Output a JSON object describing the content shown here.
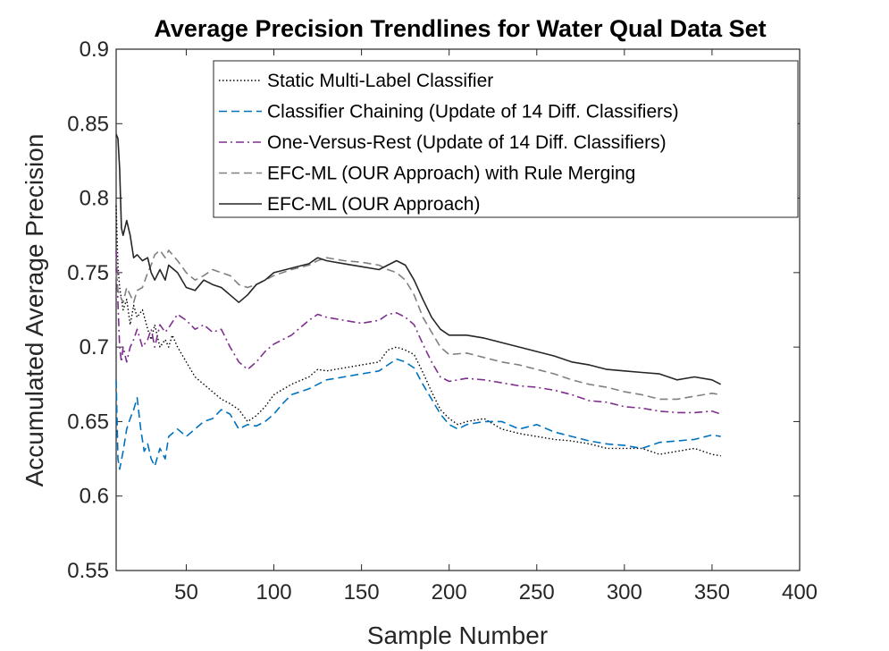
{
  "chart_data": {
    "type": "line",
    "title": "Average Precision Trendlines for Water Qual Data Set",
    "xlabel": "Sample Number",
    "ylabel": "Accumulated Average Precision",
    "xlim": [
      10,
      400
    ],
    "ylim": [
      0.55,
      0.9
    ],
    "xticks": [
      50,
      100,
      150,
      200,
      250,
      300,
      350,
      400
    ],
    "xtick_labels": [
      "50",
      "100",
      "150",
      "200",
      "250",
      "300",
      "350",
      "400"
    ],
    "yticks": [
      0.55,
      0.6,
      0.65,
      0.7,
      0.75,
      0.8,
      0.85,
      0.9
    ],
    "ytick_labels": [
      "0.55",
      "0.6",
      "0.65",
      "0.7",
      "0.75",
      "0.8",
      "0.85",
      "0.9"
    ],
    "grid": false,
    "legend_position": "top-right",
    "series": [
      {
        "name": "Static Multi-Label Classifier",
        "color": "#000000",
        "style": "dotted",
        "points": [
          [
            10,
            0.795
          ],
          [
            11,
            0.755
          ],
          [
            12,
            0.74
          ],
          [
            14,
            0.725
          ],
          [
            16,
            0.732
          ],
          [
            18,
            0.715
          ],
          [
            20,
            0.728
          ],
          [
            22,
            0.72
          ],
          [
            25,
            0.725
          ],
          [
            28,
            0.712
          ],
          [
            30,
            0.705
          ],
          [
            32,
            0.715
          ],
          [
            35,
            0.7
          ],
          [
            38,
            0.705
          ],
          [
            40,
            0.7
          ],
          [
            42,
            0.708
          ],
          [
            45,
            0.7
          ],
          [
            50,
            0.69
          ],
          [
            55,
            0.68
          ],
          [
            60,
            0.675
          ],
          [
            65,
            0.67
          ],
          [
            70,
            0.665
          ],
          [
            75,
            0.662
          ],
          [
            80,
            0.658
          ],
          [
            85,
            0.65
          ],
          [
            90,
            0.654
          ],
          [
            95,
            0.66
          ],
          [
            100,
            0.668
          ],
          [
            110,
            0.675
          ],
          [
            120,
            0.68
          ],
          [
            125,
            0.685
          ],
          [
            130,
            0.684
          ],
          [
            140,
            0.686
          ],
          [
            150,
            0.688
          ],
          [
            160,
            0.69
          ],
          [
            165,
            0.698
          ],
          [
            170,
            0.7
          ],
          [
            175,
            0.698
          ],
          [
            180,
            0.695
          ],
          [
            185,
            0.683
          ],
          [
            190,
            0.67
          ],
          [
            195,
            0.658
          ],
          [
            200,
            0.652
          ],
          [
            205,
            0.648
          ],
          [
            210,
            0.65
          ],
          [
            220,
            0.652
          ],
          [
            230,
            0.645
          ],
          [
            240,
            0.642
          ],
          [
            250,
            0.64
          ],
          [
            260,
            0.638
          ],
          [
            270,
            0.637
          ],
          [
            280,
            0.635
          ],
          [
            290,
            0.632
          ],
          [
            300,
            0.632
          ],
          [
            310,
            0.632
          ],
          [
            320,
            0.628
          ],
          [
            330,
            0.63
          ],
          [
            340,
            0.632
          ],
          [
            350,
            0.628
          ],
          [
            355,
            0.627
          ]
        ]
      },
      {
        "name": "Classifier Chaining (Update of 14 Diff. Classifiers)",
        "color": "#0072BD",
        "style": "dashed",
        "points": [
          [
            10,
            0.678
          ],
          [
            11,
            0.625
          ],
          [
            12,
            0.618
          ],
          [
            14,
            0.63
          ],
          [
            16,
            0.645
          ],
          [
            18,
            0.652
          ],
          [
            20,
            0.658
          ],
          [
            22,
            0.666
          ],
          [
            24,
            0.645
          ],
          [
            26,
            0.63
          ],
          [
            28,
            0.635
          ],
          [
            30,
            0.625
          ],
          [
            32,
            0.62
          ],
          [
            35,
            0.632
          ],
          [
            38,
            0.625
          ],
          [
            40,
            0.64
          ],
          [
            45,
            0.645
          ],
          [
            50,
            0.64
          ],
          [
            55,
            0.645
          ],
          [
            60,
            0.65
          ],
          [
            65,
            0.652
          ],
          [
            70,
            0.658
          ],
          [
            75,
            0.655
          ],
          [
            80,
            0.645
          ],
          [
            85,
            0.648
          ],
          [
            90,
            0.647
          ],
          [
            95,
            0.65
          ],
          [
            100,
            0.655
          ],
          [
            105,
            0.662
          ],
          [
            110,
            0.668
          ],
          [
            120,
            0.672
          ],
          [
            130,
            0.678
          ],
          [
            140,
            0.68
          ],
          [
            150,
            0.682
          ],
          [
            160,
            0.684
          ],
          [
            165,
            0.688
          ],
          [
            170,
            0.692
          ],
          [
            175,
            0.69
          ],
          [
            180,
            0.686
          ],
          [
            185,
            0.675
          ],
          [
            190,
            0.665
          ],
          [
            195,
            0.655
          ],
          [
            200,
            0.648
          ],
          [
            205,
            0.645
          ],
          [
            210,
            0.648
          ],
          [
            220,
            0.65
          ],
          [
            230,
            0.65
          ],
          [
            240,
            0.645
          ],
          [
            250,
            0.648
          ],
          [
            260,
            0.643
          ],
          [
            270,
            0.64
          ],
          [
            280,
            0.637
          ],
          [
            290,
            0.635
          ],
          [
            300,
            0.634
          ],
          [
            310,
            0.632
          ],
          [
            320,
            0.636
          ],
          [
            330,
            0.637
          ],
          [
            340,
            0.638
          ],
          [
            350,
            0.641
          ],
          [
            355,
            0.64
          ]
        ]
      },
      {
        "name": "One-Versus-Rest (Update of 14 Diff. Classifiers)",
        "color": "#7E2F8E",
        "style": "dashdot",
        "points": [
          [
            10,
            0.765
          ],
          [
            11,
            0.73
          ],
          [
            12,
            0.7
          ],
          [
            13,
            0.69
          ],
          [
            14,
            0.7
          ],
          [
            16,
            0.69
          ],
          [
            18,
            0.7
          ],
          [
            20,
            0.705
          ],
          [
            22,
            0.712
          ],
          [
            25,
            0.7
          ],
          [
            28,
            0.705
          ],
          [
            30,
            0.712
          ],
          [
            32,
            0.7
          ],
          [
            35,
            0.715
          ],
          [
            38,
            0.71
          ],
          [
            40,
            0.713
          ],
          [
            45,
            0.722
          ],
          [
            50,
            0.718
          ],
          [
            55,
            0.712
          ],
          [
            60,
            0.715
          ],
          [
            65,
            0.71
          ],
          [
            70,
            0.712
          ],
          [
            75,
            0.7
          ],
          [
            80,
            0.69
          ],
          [
            85,
            0.685
          ],
          [
            90,
            0.69
          ],
          [
            95,
            0.697
          ],
          [
            100,
            0.702
          ],
          [
            110,
            0.708
          ],
          [
            120,
            0.718
          ],
          [
            125,
            0.722
          ],
          [
            130,
            0.72
          ],
          [
            140,
            0.718
          ],
          [
            150,
            0.716
          ],
          [
            160,
            0.718
          ],
          [
            165,
            0.722
          ],
          [
            170,
            0.723
          ],
          [
            175,
            0.72
          ],
          [
            180,
            0.715
          ],
          [
            185,
            0.702
          ],
          [
            190,
            0.69
          ],
          [
            195,
            0.68
          ],
          [
            200,
            0.677
          ],
          [
            210,
            0.679
          ],
          [
            220,
            0.678
          ],
          [
            230,
            0.676
          ],
          [
            240,
            0.674
          ],
          [
            250,
            0.673
          ],
          [
            260,
            0.671
          ],
          [
            270,
            0.668
          ],
          [
            280,
            0.664
          ],
          [
            290,
            0.663
          ],
          [
            300,
            0.66
          ],
          [
            310,
            0.659
          ],
          [
            320,
            0.657
          ],
          [
            330,
            0.656
          ],
          [
            340,
            0.656
          ],
          [
            350,
            0.657
          ],
          [
            355,
            0.655
          ]
        ]
      },
      {
        "name": "EFC-ML (OUR Approach) with Rule Merging",
        "color": "#808080",
        "style": "dashed",
        "points": [
          [
            10,
            0.75
          ],
          [
            11,
            0.738
          ],
          [
            12,
            0.735
          ],
          [
            14,
            0.73
          ],
          [
            16,
            0.74
          ],
          [
            18,
            0.735
          ],
          [
            20,
            0.73
          ],
          [
            22,
            0.738
          ],
          [
            25,
            0.74
          ],
          [
            28,
            0.75
          ],
          [
            30,
            0.755
          ],
          [
            32,
            0.762
          ],
          [
            35,
            0.765
          ],
          [
            38,
            0.76
          ],
          [
            40,
            0.765
          ],
          [
            45,
            0.758
          ],
          [
            50,
            0.75
          ],
          [
            55,
            0.745
          ],
          [
            60,
            0.748
          ],
          [
            65,
            0.752
          ],
          [
            70,
            0.75
          ],
          [
            75,
            0.748
          ],
          [
            80,
            0.742
          ],
          [
            85,
            0.74
          ],
          [
            90,
            0.742
          ],
          [
            95,
            0.745
          ],
          [
            100,
            0.748
          ],
          [
            110,
            0.752
          ],
          [
            120,
            0.755
          ],
          [
            125,
            0.758
          ],
          [
            130,
            0.76
          ],
          [
            140,
            0.758
          ],
          [
            150,
            0.757
          ],
          [
            160,
            0.755
          ],
          [
            165,
            0.752
          ],
          [
            170,
            0.75
          ],
          [
            175,
            0.745
          ],
          [
            180,
            0.735
          ],
          [
            185,
            0.72
          ],
          [
            190,
            0.71
          ],
          [
            195,
            0.7
          ],
          [
            200,
            0.695
          ],
          [
            210,
            0.696
          ],
          [
            220,
            0.693
          ],
          [
            230,
            0.69
          ],
          [
            240,
            0.688
          ],
          [
            250,
            0.685
          ],
          [
            260,
            0.682
          ],
          [
            270,
            0.678
          ],
          [
            280,
            0.675
          ],
          [
            290,
            0.673
          ],
          [
            300,
            0.67
          ],
          [
            310,
            0.668
          ],
          [
            320,
            0.665
          ],
          [
            330,
            0.665
          ],
          [
            340,
            0.667
          ],
          [
            350,
            0.669
          ],
          [
            355,
            0.668
          ]
        ]
      },
      {
        "name": "EFC-ML (OUR Approach)",
        "color": "#262626",
        "style": "solid",
        "points": [
          [
            10,
            0.843
          ],
          [
            11,
            0.84
          ],
          [
            12,
            0.82
          ],
          [
            13,
            0.78
          ],
          [
            14,
            0.775
          ],
          [
            16,
            0.785
          ],
          [
            18,
            0.775
          ],
          [
            20,
            0.76
          ],
          [
            22,
            0.762
          ],
          [
            25,
            0.758
          ],
          [
            28,
            0.76
          ],
          [
            30,
            0.75
          ],
          [
            32,
            0.745
          ],
          [
            35,
            0.752
          ],
          [
            38,
            0.745
          ],
          [
            40,
            0.755
          ],
          [
            45,
            0.75
          ],
          [
            50,
            0.74
          ],
          [
            55,
            0.738
          ],
          [
            60,
            0.745
          ],
          [
            65,
            0.742
          ],
          [
            70,
            0.74
          ],
          [
            75,
            0.735
          ],
          [
            80,
            0.73
          ],
          [
            85,
            0.735
          ],
          [
            90,
            0.742
          ],
          [
            95,
            0.745
          ],
          [
            100,
            0.75
          ],
          [
            110,
            0.753
          ],
          [
            120,
            0.756
          ],
          [
            125,
            0.76
          ],
          [
            130,
            0.758
          ],
          [
            140,
            0.756
          ],
          [
            150,
            0.754
          ],
          [
            160,
            0.752
          ],
          [
            165,
            0.755
          ],
          [
            170,
            0.758
          ],
          [
            175,
            0.755
          ],
          [
            180,
            0.745
          ],
          [
            185,
            0.732
          ],
          [
            190,
            0.72
          ],
          [
            195,
            0.712
          ],
          [
            200,
            0.708
          ],
          [
            210,
            0.708
          ],
          [
            220,
            0.706
          ],
          [
            230,
            0.703
          ],
          [
            240,
            0.7
          ],
          [
            250,
            0.697
          ],
          [
            260,
            0.694
          ],
          [
            270,
            0.69
          ],
          [
            280,
            0.688
          ],
          [
            290,
            0.685
          ],
          [
            300,
            0.684
          ],
          [
            310,
            0.683
          ],
          [
            320,
            0.682
          ],
          [
            330,
            0.678
          ],
          [
            340,
            0.68
          ],
          [
            350,
            0.678
          ],
          [
            355,
            0.675
          ]
        ]
      }
    ]
  }
}
